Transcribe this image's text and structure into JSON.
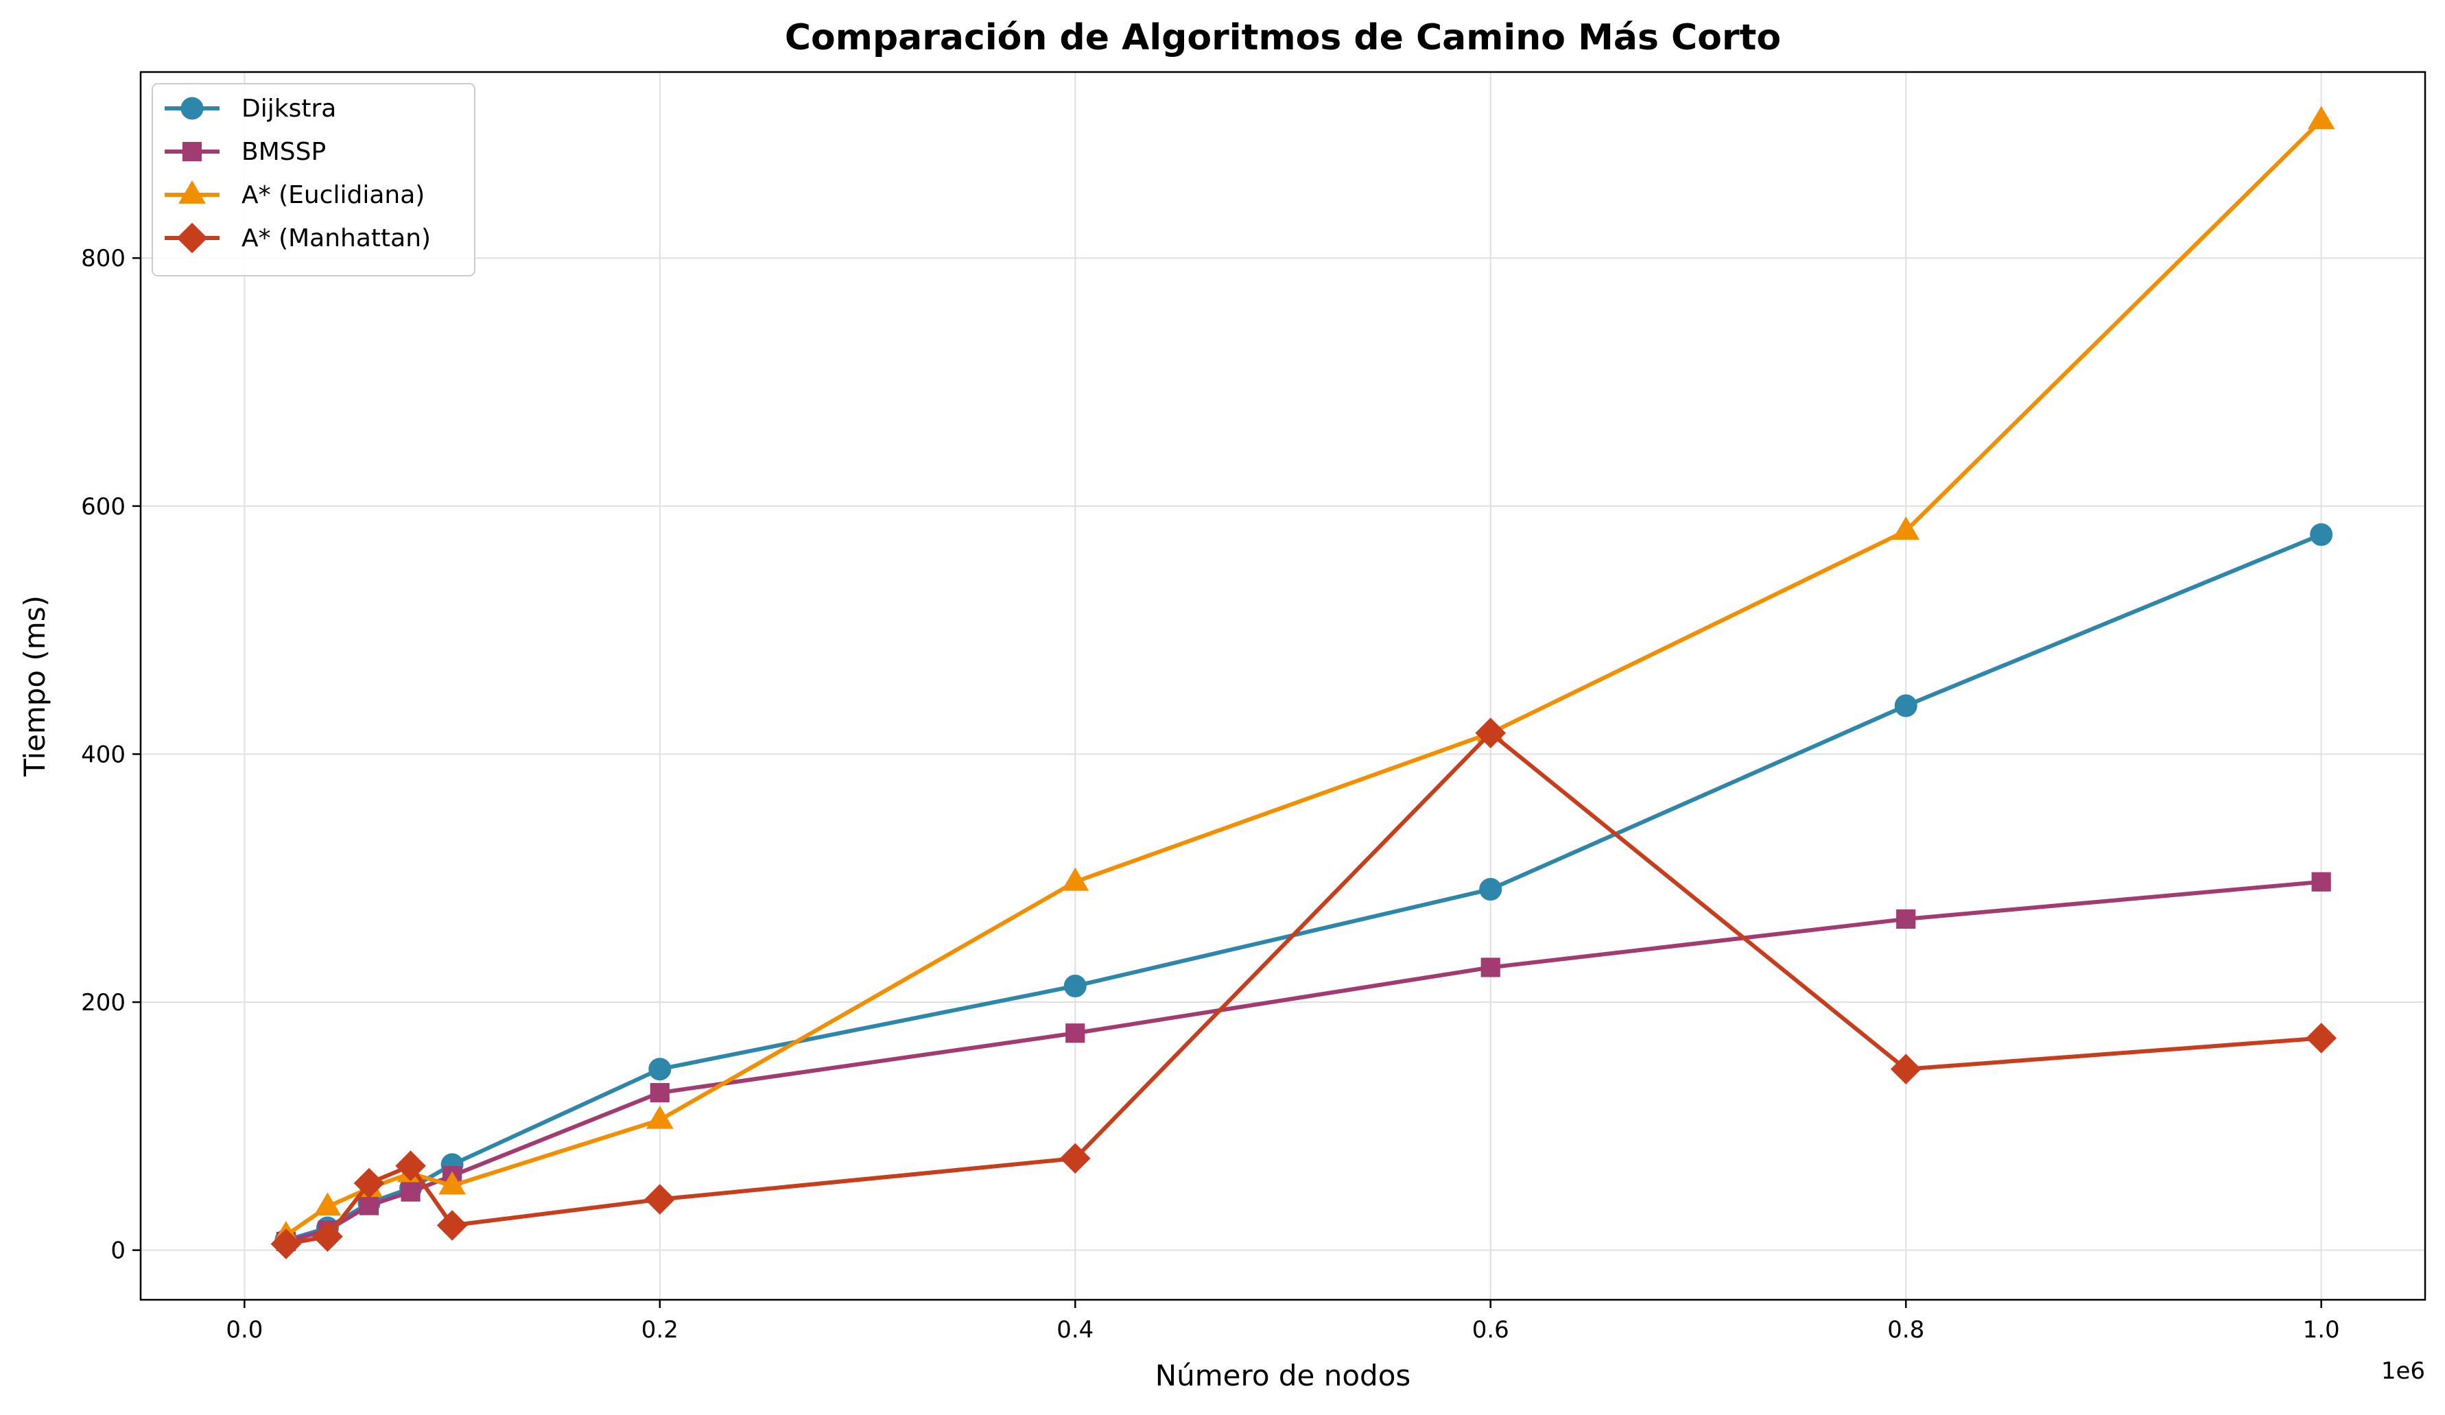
{
  "chart_data": {
    "type": "line",
    "title": "Comparación de Algoritmos de Camino Más Corto",
    "xlabel": "Número de nodos",
    "ylabel": "Tiempo (ms)",
    "x_offset_label": "1e6",
    "xlim": [
      -50000,
      1050000
    ],
    "ylim": [
      -40,
      950
    ],
    "xticks": [
      0,
      200000,
      400000,
      600000,
      800000,
      1000000
    ],
    "xtick_labels": [
      "0.0",
      "0.2",
      "0.4",
      "0.6",
      "0.8",
      "1.0"
    ],
    "yticks": [
      0,
      200,
      400,
      600,
      800
    ],
    "ytick_labels": [
      "0",
      "200",
      "400",
      "600",
      "800"
    ],
    "grid": true,
    "legend_position": "upper left",
    "x": [
      20000,
      40000,
      60000,
      80000,
      100000,
      200000,
      400000,
      600000,
      800000,
      1000000
    ],
    "series": [
      {
        "name": "Dijkstra",
        "color": "#2E86AB",
        "marker": "circle",
        "values": [
          8,
          18,
          38,
          50,
          69,
          146,
          213,
          291,
          439,
          577
        ]
      },
      {
        "name": "BMSSP",
        "color": "#A23B72",
        "marker": "square",
        "values": [
          7,
          16,
          36,
          47,
          60,
          127,
          175,
          228,
          267,
          297
        ]
      },
      {
        "name": "A* (Euclidiana)",
        "color": "#F18F01",
        "marker": "triangle",
        "values": [
          12,
          35,
          50,
          62,
          52,
          105,
          297,
          417,
          580,
          911
        ]
      },
      {
        "name": "A* (Manhattan)",
        "color": "#C73E1D",
        "marker": "diamond",
        "values": [
          5,
          11,
          54,
          68,
          20,
          41,
          74,
          417,
          146,
          171
        ]
      }
    ]
  }
}
